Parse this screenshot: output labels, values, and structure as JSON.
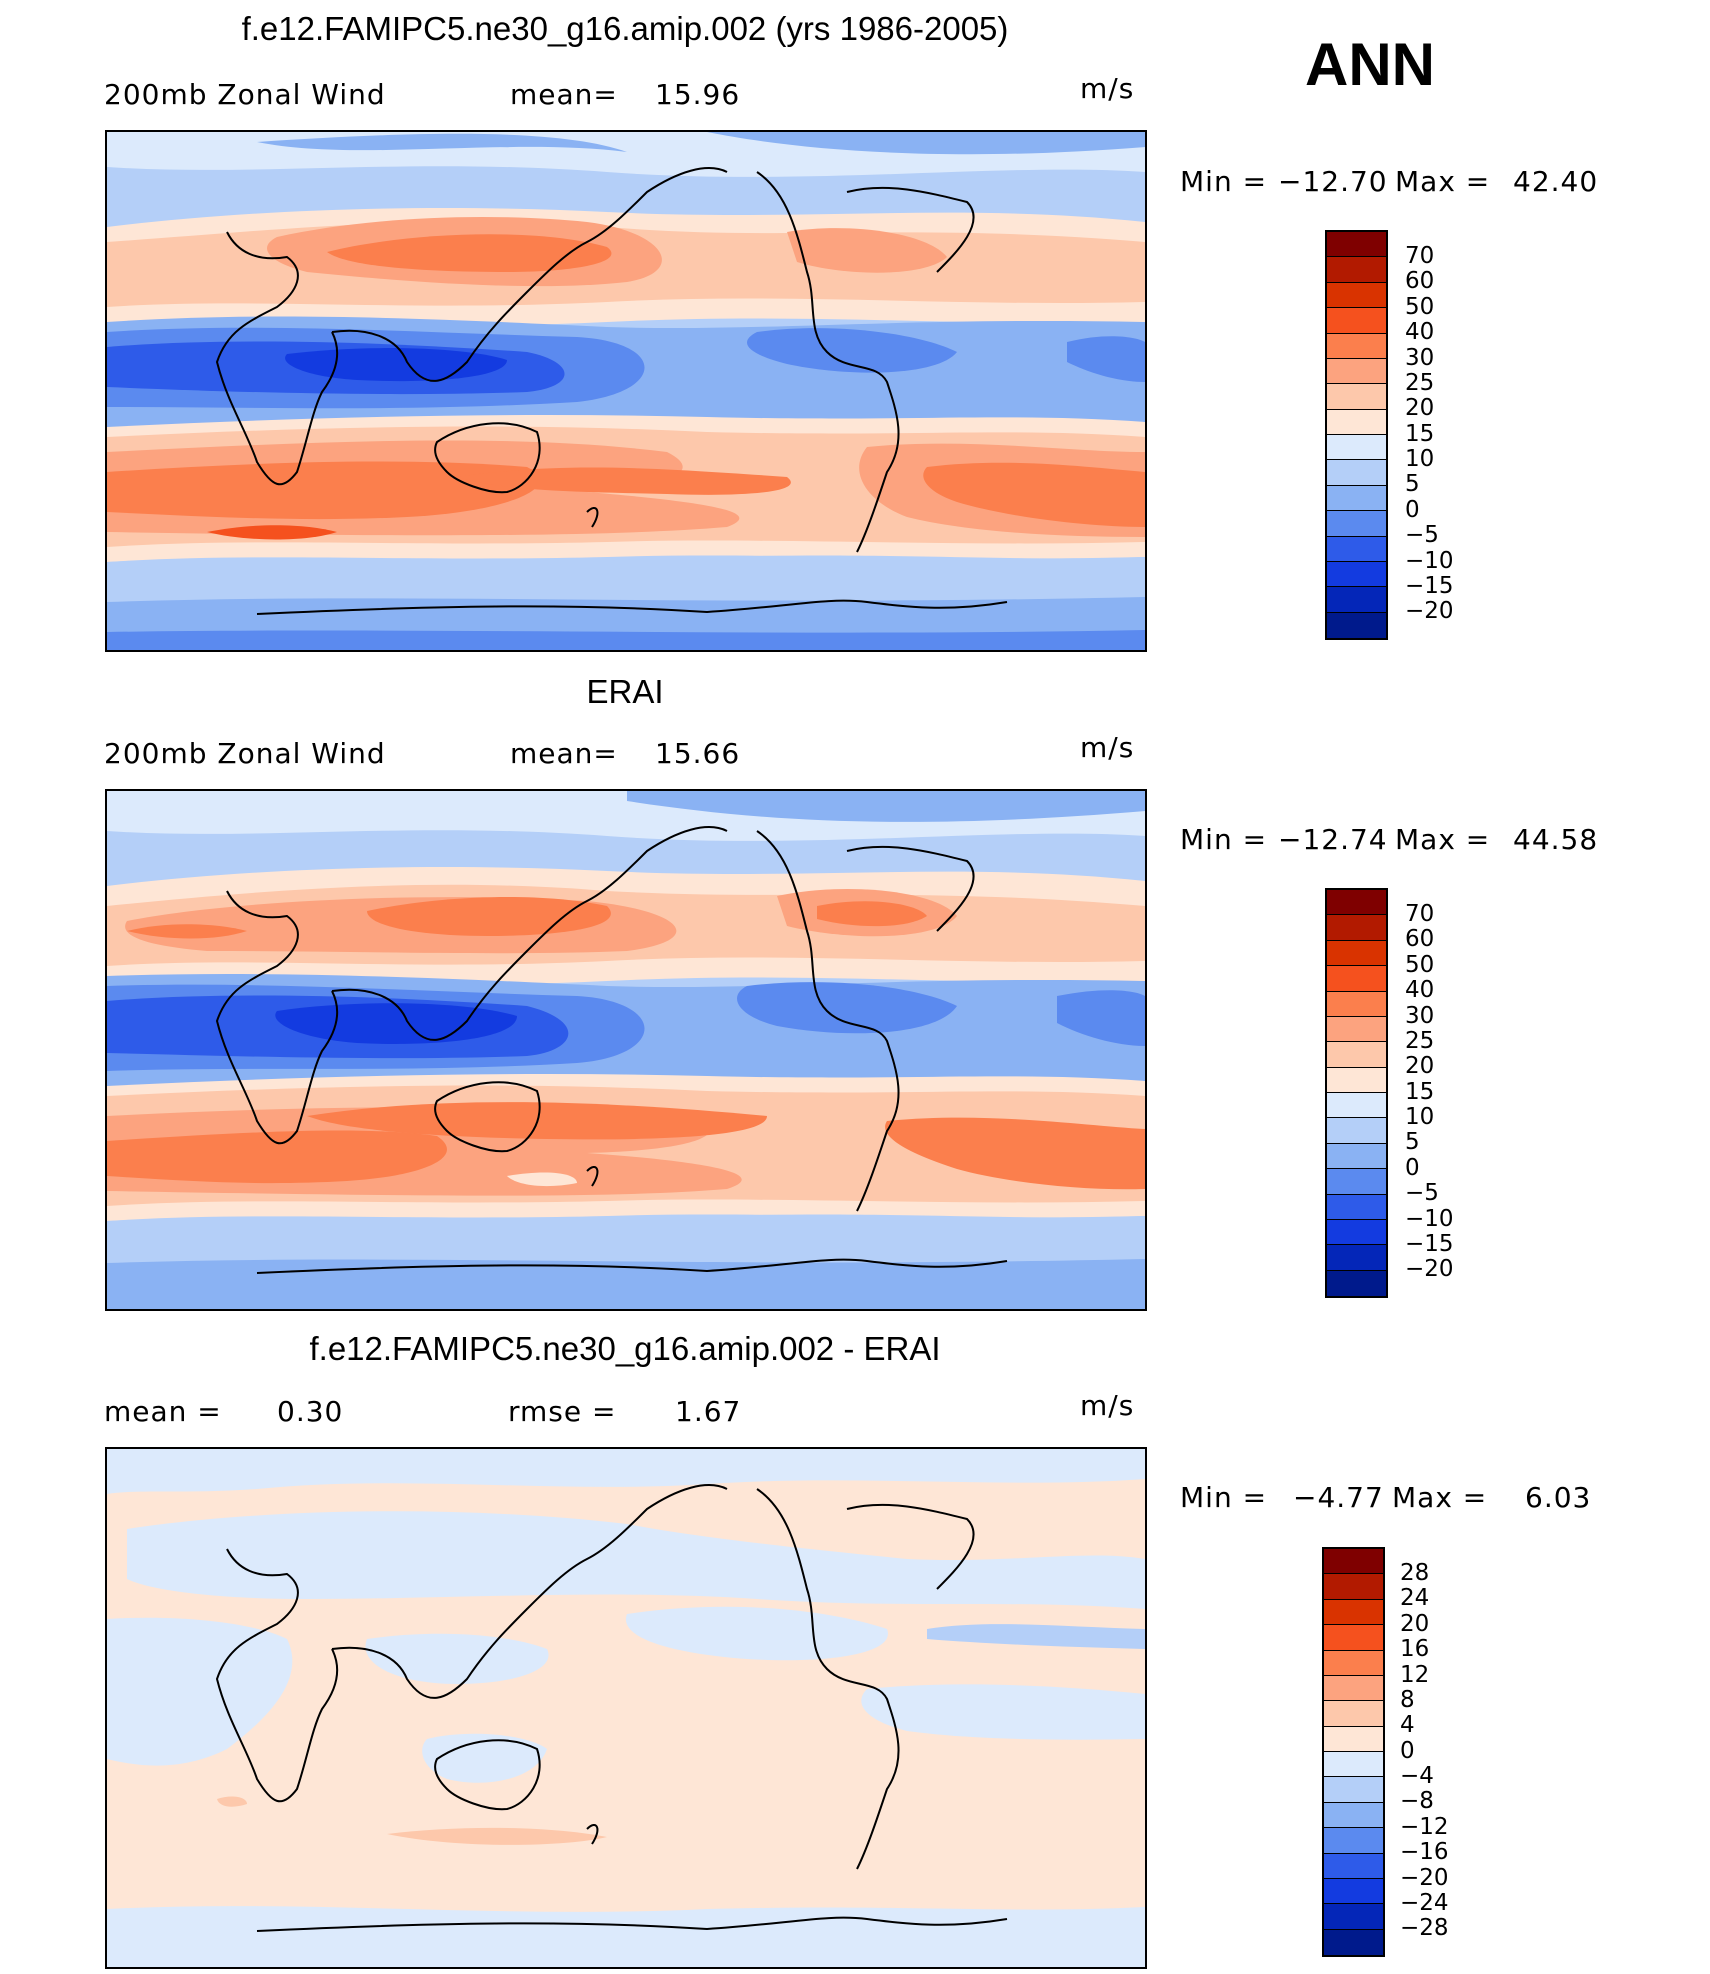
{
  "season": "ANN",
  "units": "m/s",
  "panels": [
    {
      "title": "f.e12.FAMIPC5.ne30_g16.amip.002 (yrs 1986-2005)",
      "left_label": "200mb Zonal Wind",
      "stat_label": "mean=",
      "stat_value": "15.96",
      "units": "m/s",
      "minmax": {
        "min_label": "Min =",
        "min": "−12.70",
        "max_label": "Max =",
        "max": "42.40"
      },
      "colorbar": {
        "labels": [
          "70",
          "60",
          "50",
          "40",
          "30",
          "25",
          "20",
          "15",
          "10",
          "5",
          "0",
          "−5",
          "−10",
          "−15",
          "−20"
        ],
        "colors": [
          "#7f0000",
          "#b21a00",
          "#d93300",
          "#f5511e",
          "#fb7f4d",
          "#fca37f",
          "#fdc8ab",
          "#fee6d6",
          "#dceafc",
          "#b4cff8",
          "#8ab2f3",
          "#5b8aef",
          "#2e5be9",
          "#133be0",
          "#0426b8",
          "#001a8c"
        ]
      }
    },
    {
      "title": "ERAI",
      "left_label": "200mb Zonal Wind",
      "stat_label": "mean=",
      "stat_value": "15.66",
      "units": "m/s",
      "minmax": {
        "min_label": "Min =",
        "min": "−12.74",
        "max_label": "Max =",
        "max": "44.58"
      },
      "colorbar": {
        "labels": [
          "70",
          "60",
          "50",
          "40",
          "30",
          "25",
          "20",
          "15",
          "10",
          "5",
          "0",
          "−5",
          "−10",
          "−15",
          "−20"
        ],
        "colors": [
          "#7f0000",
          "#b21a00",
          "#d93300",
          "#f5511e",
          "#fb7f4d",
          "#fca37f",
          "#fdc8ab",
          "#fee6d6",
          "#dceafc",
          "#b4cff8",
          "#8ab2f3",
          "#5b8aef",
          "#2e5be9",
          "#133be0",
          "#0426b8",
          "#001a8c"
        ]
      }
    },
    {
      "title": "f.e12.FAMIPC5.ne30_g16.amip.002 - ERAI",
      "left_label": "mean =",
      "left_value": "0.30",
      "stat_label": "rmse =",
      "stat_value": "1.67",
      "units": "m/s",
      "minmax": {
        "min_label": "Min =",
        "min": "−4.77",
        "max_label": "Max =",
        "max": "6.03"
      },
      "colorbar": {
        "labels": [
          "28",
          "24",
          "20",
          "16",
          "12",
          "8",
          "4",
          "0",
          "−4",
          "−8",
          "−12",
          "−16",
          "−20",
          "−24",
          "−28"
        ],
        "colors": [
          "#7f0000",
          "#b21a00",
          "#d93300",
          "#f5511e",
          "#fb7f4d",
          "#fca37f",
          "#fdc8ab",
          "#fee6d6",
          "#dceafc",
          "#b4cff8",
          "#8ab2f3",
          "#5b8aef",
          "#2e5be9",
          "#133be0",
          "#0426b8",
          "#001a8c"
        ]
      }
    }
  ],
  "colors": {
    "deep_blue": "#1e3fe0",
    "mid_blue": "#5b8aef",
    "light_blue": "#b4cff8",
    "pale_blue": "#dceafc",
    "pale_orange": "#fee6d6",
    "light_orange": "#fdc8ab",
    "orange": "#fca37f",
    "strong_orange": "#fb7f4d",
    "red_orange": "#f5511e"
  }
}
